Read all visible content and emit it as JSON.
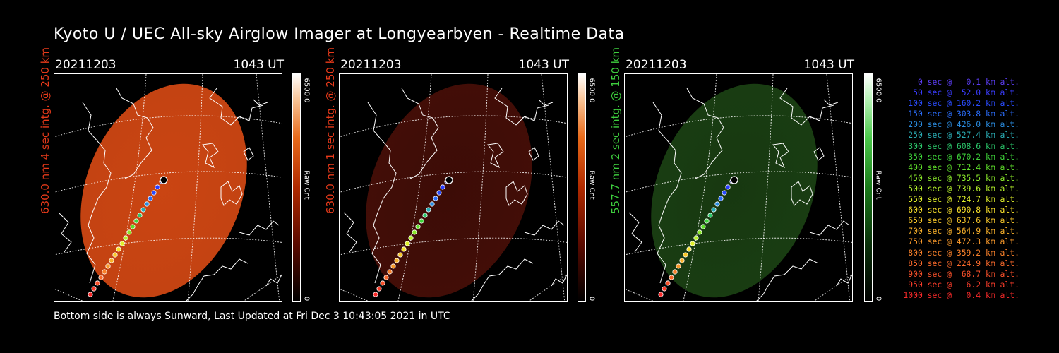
{
  "title": "Kyoto U / UEC All-sky Airglow Imager at Longyearbyen - Realtime Data",
  "footer": "Bottom side is always Sunward, Last Updated at Fri Dec  3 10:43:05 2021 in UTC",
  "panels": [
    {
      "date": "20211203",
      "time": "1043 UT",
      "ylabel": "630.0 nm 4 sec intg. @ 250 km",
      "ylabel_color": "#e83a1a",
      "colorbar_max": "6500.0",
      "colorbar_min": "0",
      "colorbar_units": "Raw Cnt",
      "image_color": "#d94a14",
      "image_level": 0.72
    },
    {
      "date": "20211203",
      "time": "1043 UT",
      "ylabel": "630.0 nm 1 sec intg. @ 250 km",
      "ylabel_color": "#e83a1a",
      "colorbar_max": "6500.0",
      "colorbar_min": "0",
      "colorbar_units": "Raw Cnt",
      "image_color": "#4a0f08",
      "image_level": 0.25
    },
    {
      "date": "20211203",
      "time": "1043 UT",
      "ylabel": "557.7 nm 2 sec intg. @ 150 km",
      "ylabel_color": "#3ecf3e",
      "colorbar_max": "6500.0",
      "colorbar_min": "0",
      "colorbar_units": "Raw Cnt",
      "image_color": "#1c4414",
      "image_level": 0.3
    }
  ],
  "legend": [
    {
      "text": "   0 sec @   0.1 km alt.",
      "color": "#5a3cf0"
    },
    {
      "text": "  50 sec @  52.0 km alt.",
      "color": "#3a3cff"
    },
    {
      "text": " 100 sec @ 160.2 km alt.",
      "color": "#2a4cff"
    },
    {
      "text": " 150 sec @ 303.8 km alt.",
      "color": "#2a6cf8"
    },
    {
      "text": " 200 sec @ 426.0 km alt.",
      "color": "#2a8ce0"
    },
    {
      "text": " 250 sec @ 527.4 km alt.",
      "color": "#2aacb4"
    },
    {
      "text": " 300 sec @ 608.6 km alt.",
      "color": "#2cc86c"
    },
    {
      "text": " 350 sec @ 670.2 km alt.",
      "color": "#3ed43a"
    },
    {
      "text": " 400 sec @ 712.4 km alt.",
      "color": "#5ede2a"
    },
    {
      "text": " 450 sec @ 735.5 km alt.",
      "color": "#8ae82a"
    },
    {
      "text": " 500 sec @ 739.6 km alt.",
      "color": "#b4f02a"
    },
    {
      "text": " 550 sec @ 724.7 km alt.",
      "color": "#e0f02a"
    },
    {
      "text": " 600 sec @ 690.8 km alt.",
      "color": "#f8e02a"
    },
    {
      "text": " 650 sec @ 637.6 km alt.",
      "color": "#f8c82a"
    },
    {
      "text": " 700 sec @ 564.9 km alt.",
      "color": "#f8b02a"
    },
    {
      "text": " 750 sec @ 472.3 km alt.",
      "color": "#f8982a"
    },
    {
      "text": " 800 sec @ 359.2 km alt.",
      "color": "#f8802a"
    },
    {
      "text": " 850 sec @ 224.9 km alt.",
      "color": "#f8682a"
    },
    {
      "text": " 900 sec @  68.7 km alt.",
      "color": "#f8502a"
    },
    {
      "text": " 950 sec @   6.2 km alt.",
      "color": "#f83c2a"
    },
    {
      "text": "1000 sec @   0.4 km alt.",
      "color": "#f82a2a"
    }
  ]
}
